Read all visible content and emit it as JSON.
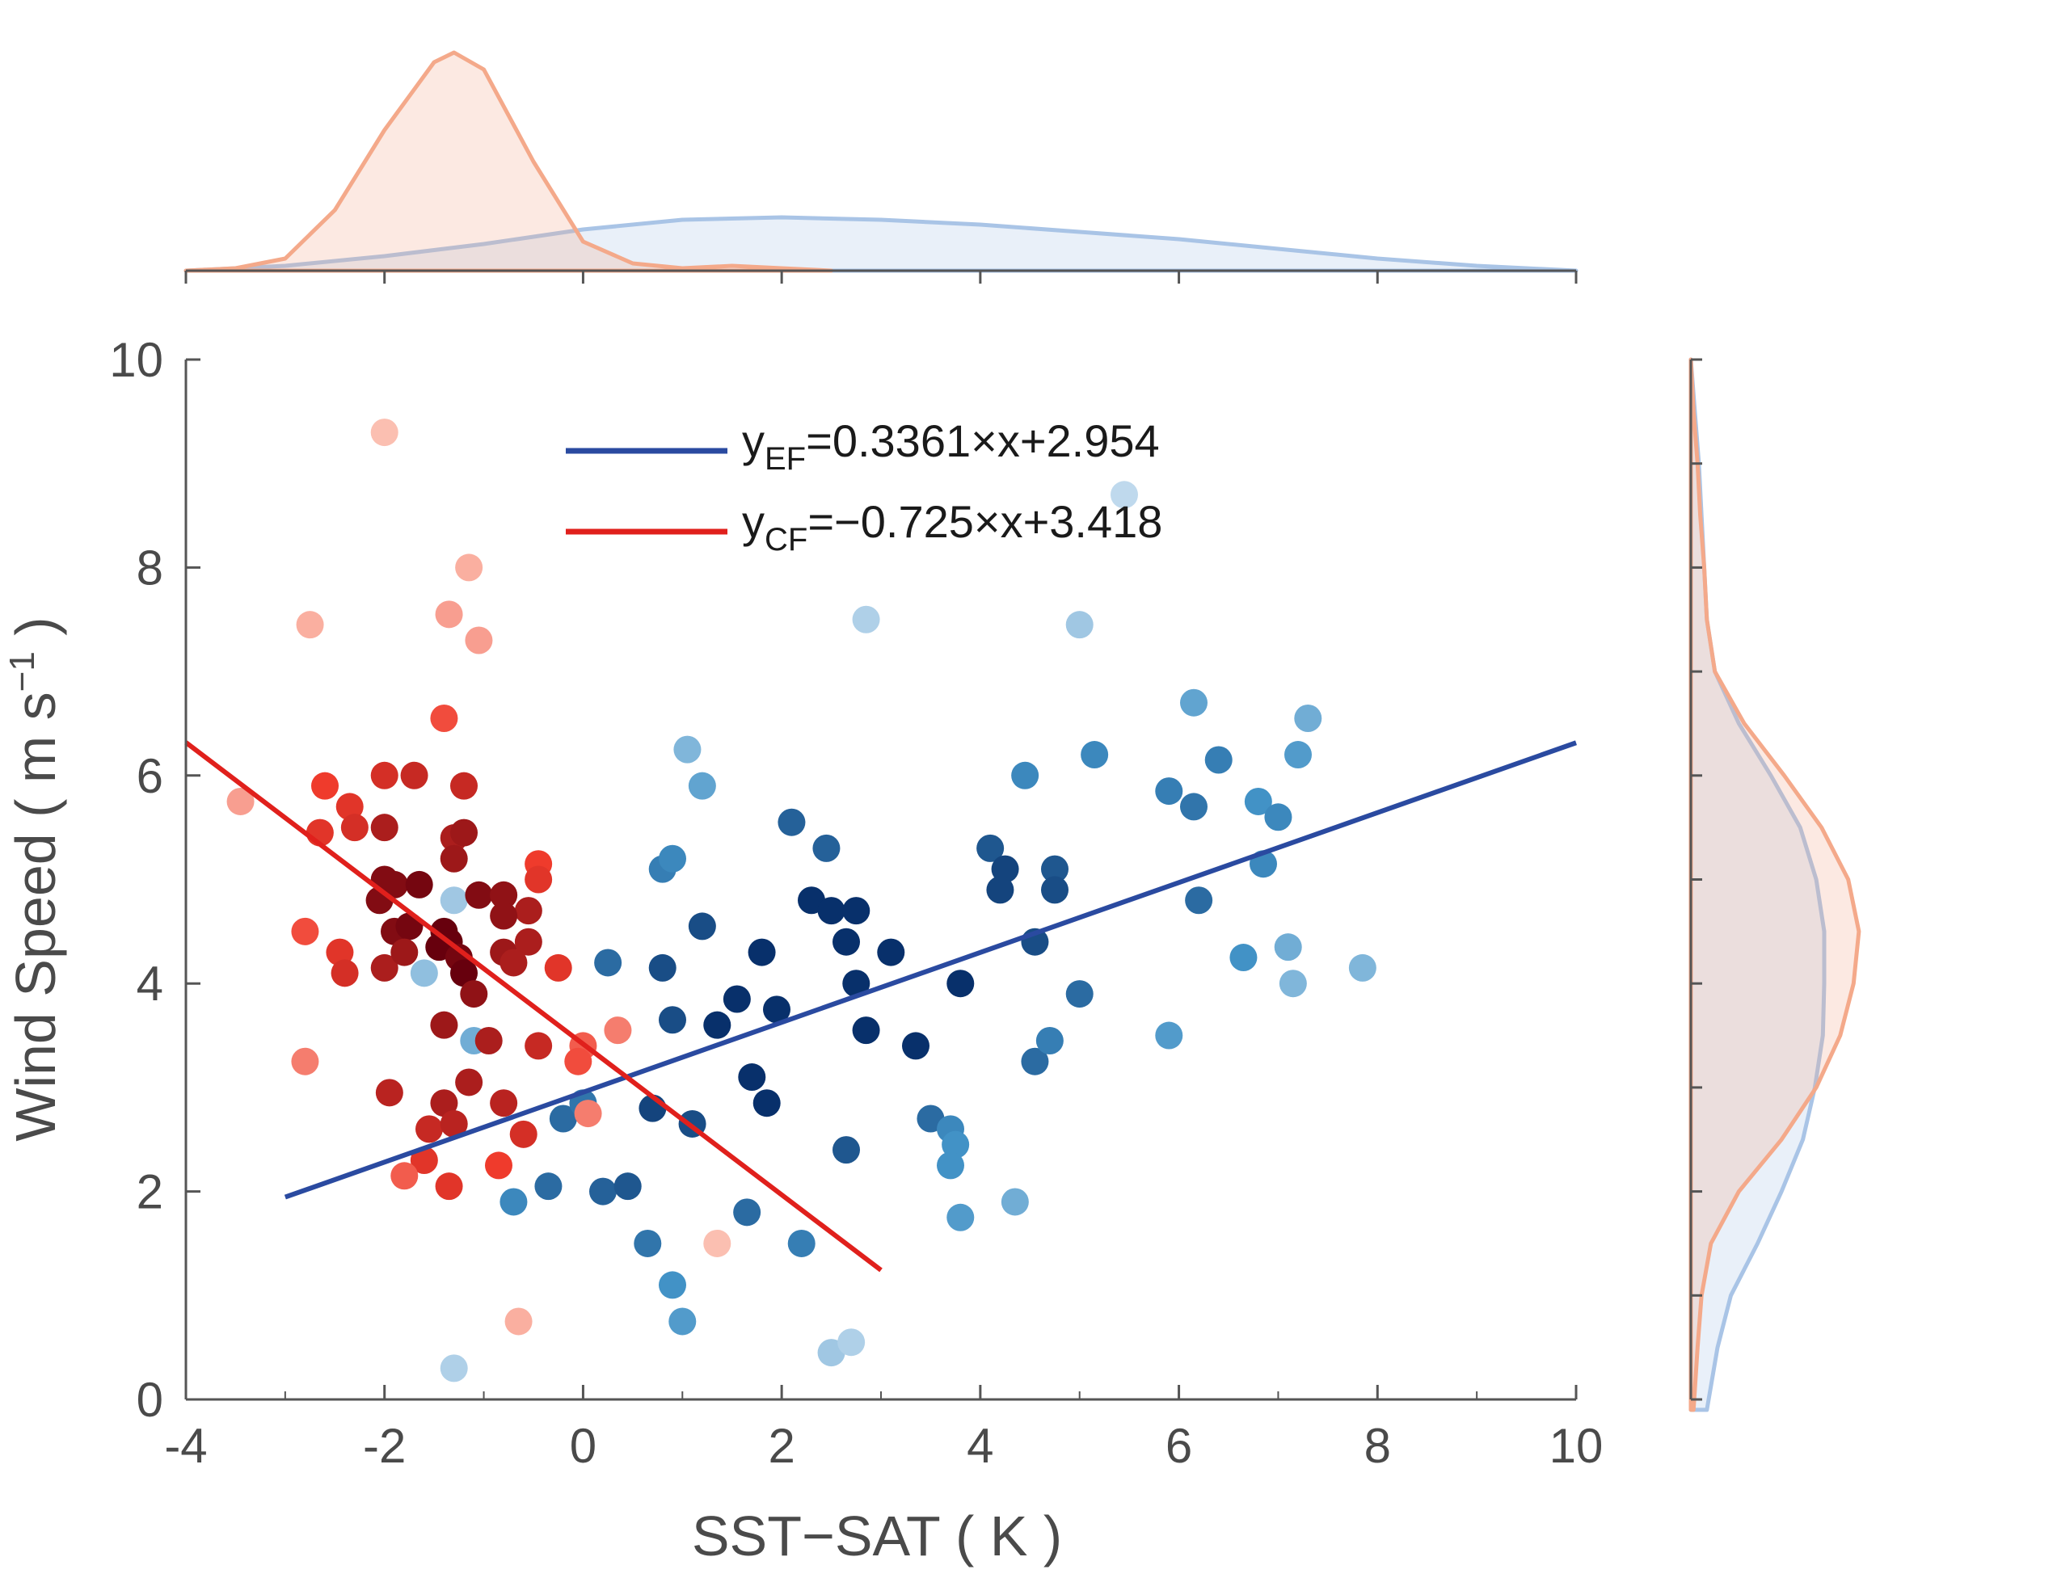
{
  "chart_data": {
    "type": "scatter",
    "xlabel": "SST−SAT ( K )",
    "ylabel": "Wind Speed ( m s",
    "ylabel_sup": "−1",
    "ylabel_end": " )",
    "xlim": [
      -4,
      10
    ],
    "ylim": [
      0,
      10
    ],
    "xticks": [
      -4,
      -2,
      0,
      2,
      4,
      6,
      8,
      10
    ],
    "yticks": [
      0,
      2,
      4,
      6,
      8,
      10
    ],
    "xtick_labels": [
      "-4",
      "-2",
      "0",
      "2",
      "4",
      "6",
      "8",
      "10"
    ],
    "ytick_labels": [
      "0",
      "2",
      "4",
      "6",
      "8",
      "10"
    ],
    "colors": {
      "ef_line": "#2a4aa0",
      "cf_line": "#e0201c",
      "ef_density": "#a9c4e6",
      "cf_density": "#f4a98a",
      "axis": "#555555"
    },
    "legend": [
      {
        "prefix": "y",
        "subscript": "EF",
        "equation": "=0.3361×x+2.954",
        "color": "#2a4aa0"
      },
      {
        "prefix": "y",
        "subscript": "CF",
        "equation": "=−0.725×x+3.418",
        "color": "#e0201c"
      }
    ],
    "lines": [
      {
        "name": "EF fit",
        "slope": 0.3361,
        "intercept": 2.954,
        "x_range": [
          -3,
          10
        ],
        "color": "#2a4aa0"
      },
      {
        "name": "CF fit",
        "slope": -0.725,
        "intercept": 3.418,
        "x_range": [
          -4,
          3
        ],
        "color": "#e0201c"
      }
    ],
    "series": [
      {
        "name": "EF",
        "points": [
          [
            -1.3,
            0.3,
            0.15
          ],
          [
            1.0,
            0.75,
            0.45
          ],
          [
            0.9,
            1.1,
            0.5
          ],
          [
            0.65,
            1.5,
            0.65
          ],
          [
            1.65,
            1.8,
            0.7
          ],
          [
            2.2,
            1.5,
            0.6
          ],
          [
            2.5,
            0.45,
            0.2
          ],
          [
            2.7,
            0.55,
            0.15
          ],
          [
            3.8,
            1.75,
            0.45
          ],
          [
            4.35,
            1.9,
            0.35
          ],
          [
            0.2,
            2.0,
            0.75
          ],
          [
            0.45,
            2.05,
            0.8
          ],
          [
            -0.7,
            1.9,
            0.55
          ],
          [
            -0.35,
            2.05,
            0.7
          ],
          [
            -0.2,
            2.7,
            0.7
          ],
          [
            0.0,
            2.85,
            0.65
          ],
          [
            0.7,
            2.8,
            0.9
          ],
          [
            1.1,
            2.65,
            0.85
          ],
          [
            1.7,
            3.1,
            1.0
          ],
          [
            1.85,
            2.85,
            1.0
          ],
          [
            2.65,
            2.4,
            0.8
          ],
          [
            3.5,
            2.7,
            0.7
          ],
          [
            3.7,
            2.6,
            0.55
          ],
          [
            3.75,
            2.45,
            0.5
          ],
          [
            3.7,
            2.25,
            0.5
          ],
          [
            0.9,
            3.65,
            0.85
          ],
          [
            1.35,
            3.6,
            1.0
          ],
          [
            1.55,
            3.85,
            1.0
          ],
          [
            1.95,
            3.75,
            1.0
          ],
          [
            2.85,
            3.55,
            1.0
          ],
          [
            3.35,
            3.4,
            1.0
          ],
          [
            4.55,
            3.25,
            0.7
          ],
          [
            4.7,
            3.45,
            0.6
          ],
          [
            5.0,
            3.9,
            0.7
          ],
          [
            3.8,
            4.0,
            1.0
          ],
          [
            2.75,
            4.0,
            1.0
          ],
          [
            3.1,
            4.3,
            1.0
          ],
          [
            2.65,
            4.4,
            1.0
          ],
          [
            1.8,
            4.3,
            1.0
          ],
          [
            1.2,
            4.55,
            0.85
          ],
          [
            0.8,
            4.15,
            0.85
          ],
          [
            0.25,
            4.2,
            0.7
          ],
          [
            0.8,
            5.1,
            0.6
          ],
          [
            0.9,
            5.2,
            0.55
          ],
          [
            1.2,
            5.9,
            0.4
          ],
          [
            1.05,
            6.25,
            0.3
          ],
          [
            2.1,
            5.55,
            0.75
          ],
          [
            2.45,
            5.3,
            0.75
          ],
          [
            2.3,
            4.8,
            1.0
          ],
          [
            2.5,
            4.7,
            1.0
          ],
          [
            2.75,
            4.7,
            1.0
          ],
          [
            4.1,
            5.3,
            0.8
          ],
          [
            4.25,
            5.1,
            0.9
          ],
          [
            4.2,
            4.9,
            0.9
          ],
          [
            4.75,
            5.1,
            0.8
          ],
          [
            4.75,
            4.9,
            0.85
          ],
          [
            4.55,
            4.4,
            0.85
          ],
          [
            4.45,
            6.0,
            0.55
          ],
          [
            5.15,
            6.2,
            0.55
          ],
          [
            5.9,
            5.85,
            0.6
          ],
          [
            6.15,
            5.7,
            0.65
          ],
          [
            6.4,
            6.15,
            0.6
          ],
          [
            6.15,
            6.7,
            0.4
          ],
          [
            6.2,
            4.8,
            0.7
          ],
          [
            6.65,
            4.25,
            0.5
          ],
          [
            5.9,
            3.5,
            0.45
          ],
          [
            6.8,
            5.75,
            0.5
          ],
          [
            7.0,
            5.6,
            0.55
          ],
          [
            6.85,
            5.15,
            0.55
          ],
          [
            7.2,
            6.2,
            0.45
          ],
          [
            7.3,
            6.55,
            0.35
          ],
          [
            7.1,
            4.35,
            0.35
          ],
          [
            7.15,
            4.0,
            0.3
          ],
          [
            7.85,
            4.15,
            0.3
          ],
          [
            5.0,
            7.45,
            0.2
          ],
          [
            2.85,
            7.5,
            0.15
          ],
          [
            5.45,
            8.7,
            0.1
          ],
          [
            -1.6,
            4.1,
            0.25
          ],
          [
            -1.3,
            4.8,
            0.2
          ],
          [
            -1.1,
            3.45,
            0.35
          ]
        ]
      },
      {
        "name": "CF",
        "points": [
          [
            -2.0,
            9.3,
            0.1
          ],
          [
            -1.15,
            8.0,
            0.15
          ],
          [
            -2.75,
            7.45,
            0.15
          ],
          [
            -1.35,
            7.55,
            0.2
          ],
          [
            -1.05,
            7.3,
            0.2
          ],
          [
            -1.4,
            6.55,
            0.45
          ],
          [
            -2.0,
            6.0,
            0.6
          ],
          [
            -1.7,
            6.0,
            0.65
          ],
          [
            -1.2,
            5.9,
            0.65
          ],
          [
            -3.45,
            5.75,
            0.2
          ],
          [
            -2.6,
            5.9,
            0.5
          ],
          [
            -2.35,
            5.7,
            0.55
          ],
          [
            -2.65,
            5.45,
            0.55
          ],
          [
            -2.3,
            5.5,
            0.6
          ],
          [
            -2.0,
            5.5,
            0.75
          ],
          [
            -1.3,
            5.4,
            0.75
          ],
          [
            -1.2,
            5.45,
            0.8
          ],
          [
            -1.3,
            5.2,
            0.8
          ],
          [
            -0.45,
            5.15,
            0.5
          ],
          [
            -0.45,
            5.0,
            0.55
          ],
          [
            -2.0,
            5.0,
            0.9
          ],
          [
            -1.9,
            4.95,
            0.9
          ],
          [
            -1.65,
            4.95,
            0.95
          ],
          [
            -1.05,
            4.85,
            0.9
          ],
          [
            -0.8,
            4.85,
            0.85
          ],
          [
            -0.55,
            4.7,
            0.75
          ],
          [
            -0.8,
            4.65,
            0.85
          ],
          [
            -2.05,
            4.8,
            0.9
          ],
          [
            -1.9,
            4.5,
            0.9
          ],
          [
            -1.75,
            4.55,
            0.95
          ],
          [
            -1.4,
            4.5,
            1.0
          ],
          [
            -1.35,
            4.4,
            1.0
          ],
          [
            -1.45,
            4.35,
            1.0
          ],
          [
            -1.25,
            4.25,
            0.95
          ],
          [
            -1.2,
            4.1,
            1.0
          ],
          [
            -2.8,
            4.5,
            0.45
          ],
          [
            -2.45,
            4.3,
            0.55
          ],
          [
            -2.4,
            4.1,
            0.6
          ],
          [
            -2.0,
            4.15,
            0.75
          ],
          [
            -1.8,
            4.3,
            0.8
          ],
          [
            -0.8,
            4.3,
            0.8
          ],
          [
            -0.55,
            4.4,
            0.75
          ],
          [
            -0.7,
            4.2,
            0.75
          ],
          [
            -0.25,
            4.15,
            0.55
          ],
          [
            -1.1,
            3.9,
            0.85
          ],
          [
            -1.4,
            3.6,
            0.8
          ],
          [
            -0.95,
            3.45,
            0.75
          ],
          [
            -0.45,
            3.4,
            0.65
          ],
          [
            0.0,
            3.4,
            0.4
          ],
          [
            -0.05,
            3.25,
            0.45
          ],
          [
            0.35,
            3.55,
            0.3
          ],
          [
            -2.8,
            3.25,
            0.3
          ],
          [
            -1.95,
            2.95,
            0.7
          ],
          [
            -1.4,
            2.85,
            0.75
          ],
          [
            -1.15,
            3.05,
            0.75
          ],
          [
            -0.8,
            2.85,
            0.7
          ],
          [
            -1.55,
            2.6,
            0.65
          ],
          [
            -1.3,
            2.65,
            0.7
          ],
          [
            -0.6,
            2.55,
            0.6
          ],
          [
            -1.6,
            2.3,
            0.55
          ],
          [
            -0.85,
            2.25,
            0.5
          ],
          [
            -1.8,
            2.15,
            0.4
          ],
          [
            -1.35,
            2.05,
            0.55
          ],
          [
            0.05,
            2.75,
            0.3
          ],
          [
            1.35,
            1.5,
            0.1
          ],
          [
            -0.65,
            0.75,
            0.15
          ]
        ]
      }
    ],
    "density_top": [
      {
        "name": "EF",
        "x": [
          -4,
          -3,
          -2,
          -1,
          0,
          1,
          2,
          3,
          4,
          5,
          6,
          7,
          8,
          9,
          10
        ],
        "density": [
          0.0,
          0.02,
          0.06,
          0.11,
          0.17,
          0.21,
          0.22,
          0.21,
          0.19,
          0.16,
          0.13,
          0.09,
          0.05,
          0.02,
          0.0
        ]
      },
      {
        "name": "CF",
        "x": [
          -4,
          -3.5,
          -3,
          -2.5,
          -2,
          -1.5,
          -1.3,
          -1,
          -0.5,
          0,
          0.5,
          1,
          1.5,
          2,
          2.5
        ],
        "density": [
          0.0,
          0.01,
          0.05,
          0.25,
          0.58,
          0.86,
          0.9,
          0.83,
          0.45,
          0.12,
          0.03,
          0.01,
          0.02,
          0.01,
          0.0
        ]
      }
    ],
    "density_right": [
      {
        "name": "EF",
        "y": [
          -0.1,
          0.5,
          1,
          1.5,
          2,
          2.5,
          3,
          3.5,
          4,
          4.5,
          5,
          5.5,
          6,
          6.5,
          7,
          7.5,
          8,
          8.5,
          9,
          9.5,
          10
        ],
        "density": [
          0.12,
          0.2,
          0.3,
          0.5,
          0.68,
          0.84,
          0.93,
          0.99,
          1.0,
          1.0,
          0.94,
          0.82,
          0.6,
          0.36,
          0.18,
          0.12,
          0.1,
          0.08,
          0.06,
          0.03,
          0.0
        ]
      },
      {
        "name": "CF",
        "y": [
          -0.1,
          0.5,
          1,
          1.5,
          2,
          2.5,
          3,
          3.5,
          4,
          4.5,
          5,
          5.5,
          6,
          6.5,
          7,
          7.5,
          8,
          8.5,
          9,
          9.5,
          10
        ],
        "density": [
          0.02,
          0.05,
          0.08,
          0.15,
          0.36,
          0.68,
          0.94,
          1.12,
          1.22,
          1.26,
          1.18,
          0.98,
          0.7,
          0.4,
          0.18,
          0.12,
          0.1,
          0.07,
          0.05,
          0.02,
          0.0
        ]
      }
    ]
  }
}
